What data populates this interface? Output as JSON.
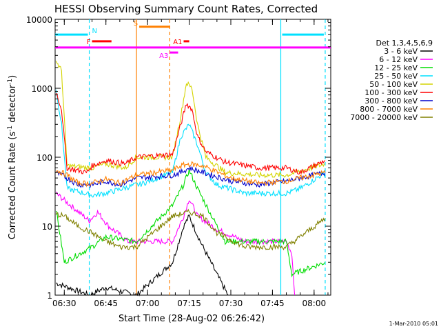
{
  "chart_data": {
    "type": "line",
    "title": "HESSI Observing Summary Count Rates, Corrected",
    "xlabel": "Start Time (28-Aug-02 06:26:42)",
    "ylabel_main": "Corrected Count Rate (s",
    "ylabel_sup1": "-1",
    "ylabel_mid": " detector",
    "ylabel_sup2": "-1",
    "ylabel_end": ")",
    "y_scale": "log",
    "ylim": [
      1,
      10000
    ],
    "xlim": [
      "06:26:42",
      "08:06:00"
    ],
    "x_ticks": [
      "06:30",
      "06:45",
      "07:00",
      "07:15",
      "07:30",
      "07:45",
      "08:00"
    ],
    "y_ticks": [
      "1",
      "10",
      "100",
      "1000",
      "10000"
    ],
    "footer_date": "1-Mar-2010 05:01",
    "legend": {
      "header": "Det 1,3,4,5,6,9",
      "position": "right"
    },
    "series": [
      {
        "name": "3 - 6 keV",
        "color": "#000000",
        "points": [
          [
            "06:27",
            1.5
          ],
          [
            "06:39",
            1
          ],
          [
            "06:45",
            1.3
          ],
          [
            "06:56",
            1
          ],
          [
            "07:09",
            3
          ],
          [
            "07:13",
            10
          ],
          [
            "07:15",
            14
          ],
          [
            "07:19",
            6
          ],
          [
            "07:25",
            2
          ],
          [
            "07:29",
            1
          ]
        ]
      },
      {
        "name": "6 - 12 keV",
        "color": "#ff00ff",
        "points": [
          [
            "06:27",
            30
          ],
          [
            "06:39",
            12
          ],
          [
            "06:42",
            16
          ],
          [
            "06:46",
            10
          ],
          [
            "06:53",
            6
          ],
          [
            "06:57",
            6
          ],
          [
            "07:09",
            6
          ],
          [
            "07:13",
            14
          ],
          [
            "07:15",
            25
          ],
          [
            "07:18",
            14
          ],
          [
            "07:25",
            9
          ],
          [
            "07:35",
            6
          ],
          [
            "07:50",
            6
          ],
          [
            "07:52",
            4
          ],
          [
            "07:53",
            1
          ]
        ]
      },
      {
        "name": "12 - 25 keV",
        "color": "#00dd00",
        "points": [
          [
            "06:27",
            18
          ],
          [
            "06:30",
            3
          ],
          [
            "06:40",
            5
          ],
          [
            "06:45",
            7
          ],
          [
            "06:56",
            6
          ],
          [
            "07:09",
            20
          ],
          [
            "07:13",
            40
          ],
          [
            "07:15",
            65
          ],
          [
            "07:18",
            35
          ],
          [
            "07:24",
            12
          ],
          [
            "07:28",
            6
          ],
          [
            "07:45",
            6
          ],
          [
            "07:50",
            6
          ],
          [
            "07:52",
            2
          ],
          [
            "08:04",
            3
          ]
        ]
      },
      {
        "name": "25 - 50 keV",
        "color": "#00e0ff",
        "points": [
          [
            "06:27",
            1000
          ],
          [
            "06:29",
            300
          ],
          [
            "06:31",
            35
          ],
          [
            "06:40",
            28
          ],
          [
            "06:45",
            30
          ],
          [
            "06:56",
            40
          ],
          [
            "06:57",
            40
          ],
          [
            "07:09",
            60
          ],
          [
            "07:12",
            200
          ],
          [
            "07:15",
            300
          ],
          [
            "07:18",
            150
          ],
          [
            "07:21",
            60
          ],
          [
            "07:25",
            40
          ],
          [
            "07:35",
            30
          ],
          [
            "07:50",
            30
          ],
          [
            "07:55",
            35
          ],
          [
            "08:04",
            60
          ]
        ]
      },
      {
        "name": "50 - 100 keV",
        "color": "#d4d400",
        "points": [
          [
            "06:27",
            2500
          ],
          [
            "06:29",
            1800
          ],
          [
            "06:31",
            75
          ],
          [
            "06:40",
            70
          ],
          [
            "06:45",
            80
          ],
          [
            "06:52",
            70
          ],
          [
            "06:56",
            100
          ],
          [
            "07:09",
            100
          ],
          [
            "07:12",
            400
          ],
          [
            "07:14",
            1200
          ],
          [
            "07:16",
            1000
          ],
          [
            "07:18",
            300
          ],
          [
            "07:21",
            100
          ],
          [
            "07:28",
            60
          ],
          [
            "07:40",
            55
          ],
          [
            "07:50",
            55
          ],
          [
            "08:04",
            80
          ]
        ]
      },
      {
        "name": "100 - 300 keV",
        "color": "#ff0000",
        "points": [
          [
            "06:27",
            900
          ],
          [
            "06:29",
            500
          ],
          [
            "06:31",
            70
          ],
          [
            "06:38",
            60
          ],
          [
            "06:40",
            75
          ],
          [
            "06:45",
            90
          ],
          [
            "06:52",
            80
          ],
          [
            "06:56",
            100
          ],
          [
            "07:09",
            110
          ],
          [
            "07:12",
            300
          ],
          [
            "07:14",
            600
          ],
          [
            "07:16",
            500
          ],
          [
            "07:18",
            200
          ],
          [
            "07:21",
            120
          ],
          [
            "07:28",
            85
          ],
          [
            "07:40",
            70
          ],
          [
            "07:50",
            70
          ],
          [
            "07:55",
            60
          ],
          [
            "08:04",
            90
          ]
        ]
      },
      {
        "name": "300 - 800 keV",
        "color": "#0000cc",
        "points": [
          [
            "06:27",
            60
          ],
          [
            "06:31",
            50
          ],
          [
            "06:35",
            40
          ],
          [
            "06:40",
            40
          ],
          [
            "06:45",
            45
          ],
          [
            "06:50",
            40
          ],
          [
            "06:56",
            50
          ],
          [
            "07:09",
            55
          ],
          [
            "07:12",
            60
          ],
          [
            "07:15",
            70
          ],
          [
            "07:20",
            60
          ],
          [
            "07:30",
            45
          ],
          [
            "07:40",
            40
          ],
          [
            "07:50",
            45
          ],
          [
            "07:55",
            50
          ],
          [
            "08:04",
            60
          ]
        ]
      },
      {
        "name": "800 - 7000 keV",
        "color": "#ff8000",
        "points": [
          [
            "06:27",
            65
          ],
          [
            "06:31",
            55
          ],
          [
            "06:35",
            42
          ],
          [
            "06:40",
            42
          ],
          [
            "06:45",
            48
          ],
          [
            "06:50",
            42
          ],
          [
            "06:56",
            55
          ],
          [
            "07:09",
            65
          ],
          [
            "07:12",
            75
          ],
          [
            "07:15",
            80
          ],
          [
            "07:20",
            75
          ],
          [
            "07:30",
            50
          ],
          [
            "07:40",
            42
          ],
          [
            "07:50",
            45
          ],
          [
            "07:55",
            50
          ],
          [
            "08:04",
            60
          ]
        ]
      },
      {
        "name": "7000 - 20000 keV",
        "color": "#808000",
        "points": [
          [
            "06:27",
            15
          ],
          [
            "06:30",
            14
          ],
          [
            "06:35",
            10
          ],
          [
            "06:40",
            8
          ],
          [
            "06:45",
            6
          ],
          [
            "06:50",
            5
          ],
          [
            "06:56",
            5
          ],
          [
            "07:09",
            14
          ],
          [
            "07:15",
            16
          ],
          [
            "07:20",
            14
          ],
          [
            "07:25",
            8
          ],
          [
            "07:35",
            5
          ],
          [
            "07:50",
            5
          ],
          [
            "07:55",
            7
          ],
          [
            "08:04",
            13
          ]
        ]
      }
    ],
    "annotations": {
      "N": {
        "label": "N",
        "color": "#00e0ff",
        "bars": [
          [
            "06:26:42",
            "06:38:30"
          ],
          [
            "07:48:30",
            "08:03:30"
          ]
        ],
        "level": 6000
      },
      "F": {
        "label": "F",
        "color": "#ff0000",
        "bars": [
          [
            "06:40",
            "06:47"
          ]
        ],
        "level": 4800
      },
      "S": {
        "label": "S",
        "color": "#ff8000",
        "bars": [
          [
            "06:57",
            "07:08"
          ]
        ],
        "level": 7800
      },
      "SAA": {
        "color": "#ff00ff",
        "bars": [
          [
            "06:26:42",
            "08:06"
          ]
        ],
        "level": 3900
      },
      "A1": {
        "label": "A1",
        "color": "#ff0000",
        "bars": [
          [
            "07:13",
            "07:15"
          ]
        ],
        "level": 4800
      },
      "A3": {
        "label": "A3",
        "color": "#ff00ff",
        "bars": [
          [
            "07:08",
            "07:11"
          ]
        ],
        "level": 3300
      }
    },
    "vlines": [
      {
        "time": "06:39",
        "color": "#00e0ff",
        "style": "dashed"
      },
      {
        "time": "06:56",
        "color": "#ff8000",
        "style": "solid"
      },
      {
        "time": "07:08",
        "color": "#ff8000",
        "style": "dashed"
      },
      {
        "time": "07:48",
        "color": "#00e0ff",
        "style": "solid"
      },
      {
        "time": "08:04",
        "color": "#00e0ff",
        "style": "dashed"
      }
    ]
  }
}
